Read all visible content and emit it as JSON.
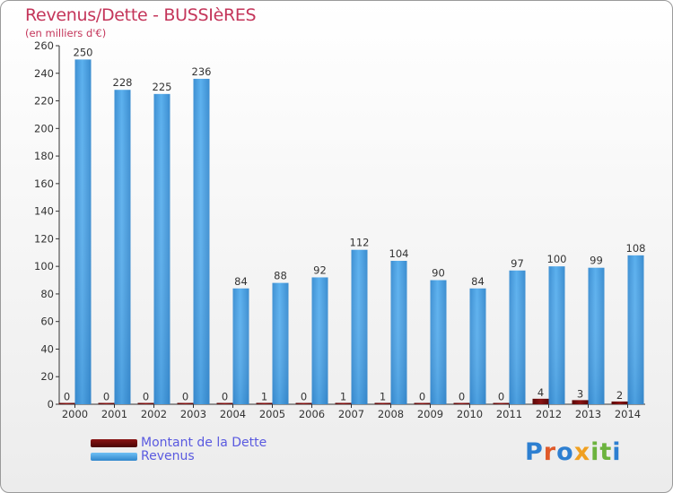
{
  "header": {
    "title": "Revenus/Dette - BUSSIèRES",
    "subtitle": "(en milliers d'€)"
  },
  "legend": {
    "items": [
      {
        "label": "Montant de la Dette",
        "color": "#6b0b0b"
      },
      {
        "label": "Revenus",
        "color": "#4ba3e3"
      }
    ]
  },
  "logo": {
    "letters": [
      "P",
      "r",
      "o",
      "x",
      "i",
      "t",
      "i"
    ],
    "colors": [
      "#2d7fd1",
      "#e05a2a",
      "#2d7fd1",
      "#f0a020",
      "#6cb33e",
      "#6cb33e",
      "#2d7fd1"
    ]
  },
  "chart_data": {
    "type": "bar",
    "title": "Revenus/Dette - BUSSIèRES",
    "subtitle": "(en milliers d'€)",
    "categories": [
      "2000",
      "2001",
      "2002",
      "2003",
      "2004",
      "2005",
      "2006",
      "2007",
      "2008",
      "2009",
      "2010",
      "2011",
      "2012",
      "2013",
      "2014"
    ],
    "series": [
      {
        "name": "Montant de la Dette",
        "color": "#6b0b0b",
        "values": [
          0,
          0,
          0,
          0,
          0,
          1,
          0,
          1,
          1,
          0,
          0,
          0,
          4,
          3,
          2
        ]
      },
      {
        "name": "Revenus",
        "color": "#4ba3e3",
        "values": [
          250,
          228,
          225,
          236,
          84,
          88,
          92,
          112,
          104,
          90,
          84,
          97,
          100,
          99,
          108
        ]
      }
    ],
    "ylim": [
      0,
      260
    ],
    "yticks": [
      0,
      20,
      40,
      60,
      80,
      100,
      120,
      140,
      160,
      180,
      200,
      220,
      240,
      260
    ],
    "grid": false,
    "legend_position": "bottom-left"
  }
}
